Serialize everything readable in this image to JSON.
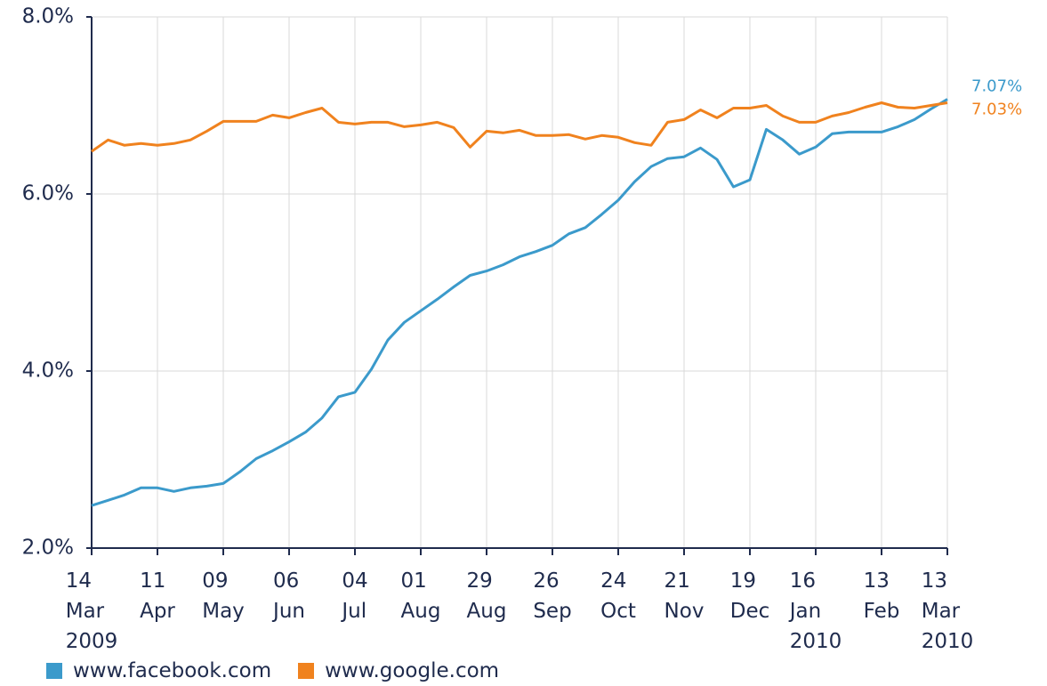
{
  "chart_data": {
    "type": "line",
    "categories": [
      "14 Mar 2009",
      null,
      null,
      null,
      "11 Apr",
      null,
      null,
      null,
      "09 May",
      null,
      null,
      null,
      "06 Jun",
      null,
      null,
      null,
      "04 Jul",
      null,
      null,
      null,
      "01 Aug",
      null,
      null,
      null,
      "29 Aug",
      null,
      null,
      null,
      "26 Sep",
      null,
      null,
      null,
      "24 Oct",
      null,
      null,
      null,
      "21 Nov",
      null,
      null,
      null,
      "19 Dec",
      null,
      null,
      null,
      "16 Jan 2010",
      null,
      null,
      null,
      "13 Feb",
      null,
      null,
      null,
      "13 Mar 2010"
    ],
    "series": [
      {
        "name": "www.facebook.com",
        "color": "#3b9acb",
        "values": [
          2.48,
          2.54,
          2.6,
          2.68,
          2.68,
          2.64,
          2.68,
          2.7,
          2.73,
          2.86,
          3.01,
          3.1,
          3.2,
          3.31,
          3.47,
          3.71,
          3.76,
          4.02,
          4.35,
          4.55,
          4.68,
          4.81,
          4.95,
          5.08,
          5.13,
          5.2,
          5.29,
          5.35,
          5.42,
          5.55,
          5.62,
          5.77,
          5.93,
          6.14,
          6.31,
          6.4,
          6.42,
          6.52,
          6.39,
          6.08,
          6.16,
          6.73,
          6.61,
          6.45,
          6.53,
          6.68,
          6.7,
          6.7,
          6.7,
          6.76,
          6.84,
          6.96,
          7.07
        ],
        "value_labels": [
          null,
          null,
          null,
          null,
          null,
          null,
          null,
          null,
          null,
          null,
          null,
          null,
          null,
          null,
          null,
          null,
          null,
          null,
          null,
          null,
          null,
          null,
          null,
          null,
          null,
          null,
          null,
          null,
          null,
          null,
          null,
          null,
          null,
          null,
          null,
          null,
          null,
          null,
          null,
          null,
          null,
          null,
          null,
          null,
          null,
          null,
          null,
          null,
          null,
          null,
          null,
          null,
          "7.07%"
        ]
      },
      {
        "name": "www.google.com",
        "color": "#f0821e",
        "values": [
          6.48,
          6.61,
          6.55,
          6.57,
          6.55,
          6.57,
          6.61,
          6.71,
          6.82,
          6.82,
          6.82,
          6.89,
          6.86,
          6.92,
          6.97,
          6.81,
          6.79,
          6.81,
          6.81,
          6.76,
          6.78,
          6.81,
          6.75,
          6.53,
          6.71,
          6.69,
          6.72,
          6.66,
          6.66,
          6.67,
          6.62,
          6.66,
          6.64,
          6.58,
          6.55,
          6.81,
          6.84,
          6.95,
          6.86,
          6.97,
          6.97,
          7.0,
          6.88,
          6.81,
          6.81,
          6.88,
          6.92,
          6.98,
          7.03,
          6.98,
          6.97,
          7.0,
          7.03
        ],
        "value_labels": [
          null,
          null,
          null,
          null,
          null,
          null,
          null,
          null,
          null,
          null,
          null,
          null,
          null,
          null,
          null,
          null,
          null,
          null,
          null,
          null,
          null,
          null,
          null,
          null,
          null,
          null,
          null,
          null,
          null,
          null,
          null,
          null,
          null,
          null,
          null,
          null,
          null,
          null,
          null,
          null,
          null,
          null,
          null,
          null,
          null,
          null,
          null,
          null,
          null,
          null,
          null,
          null,
          "7.03%"
        ]
      }
    ],
    "ylim": [
      2,
      8
    ],
    "yticks": [
      {
        "value": 2,
        "label": "2.0%"
      },
      {
        "value": 4,
        "label": "4.0%"
      },
      {
        "value": 6,
        "label": "6.0%"
      },
      {
        "value": 8,
        "label": "8.0%"
      }
    ],
    "grid": true,
    "legend": "bottom"
  }
}
